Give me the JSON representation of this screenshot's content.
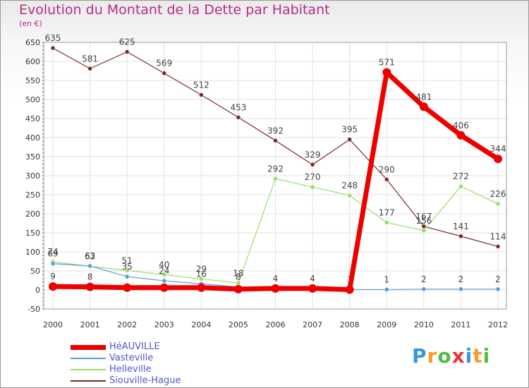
{
  "chart_data": {
    "type": "line",
    "title": "Evolution du Montant de la Dette par Habitant",
    "unit_label": "(en €)",
    "xlabel": "",
    "ylabel": "",
    "categories": [
      "2000",
      "2001",
      "2002",
      "2003",
      "2004",
      "2005",
      "2006",
      "2007",
      "2008",
      "2009",
      "2010",
      "2011",
      "2012"
    ],
    "ylim": [
      -50,
      650
    ],
    "yticks": [
      -50,
      0,
      50,
      100,
      150,
      200,
      250,
      300,
      350,
      400,
      450,
      500,
      550,
      600,
      650
    ],
    "grid": true,
    "series": [
      {
        "name": "Siouville-Hague",
        "color": "#7a2a2a",
        "width": 1.2,
        "values": [
          635,
          581,
          625,
          569,
          512,
          453,
          392,
          329,
          395,
          290,
          167,
          141,
          114
        ],
        "labels": [
          "635",
          "581",
          "625",
          "569",
          "512",
          "453",
          "392",
          "329",
          "395",
          "290",
          "167",
          "141",
          "114"
        ]
      },
      {
        "name": "Helleville",
        "color": "#99dd66",
        "width": 1.2,
        "values": [
          74,
          62,
          51,
          40,
          29,
          18,
          292,
          270,
          248,
          177,
          156,
          272,
          226
        ],
        "labels": [
          "74",
          "62",
          "51",
          "40",
          "29",
          "18",
          "292",
          "270",
          "248",
          "177",
          "156",
          "272",
          "226"
        ]
      },
      {
        "name": "Vasteville",
        "color": "#5b9bd5",
        "width": 1.2,
        "values": [
          69,
          63,
          35,
          24,
          16,
          8,
          4,
          4,
          1,
          1,
          2,
          2,
          2
        ],
        "labels": [
          "69",
          "63",
          "35",
          "24",
          "16",
          "8",
          "4",
          "4",
          "1",
          "1",
          "2",
          "2",
          "2"
        ]
      },
      {
        "name": "HéAUVILLE",
        "color": "#ee0000",
        "width": 7,
        "values": [
          9,
          8,
          6,
          6,
          6,
          2,
          4,
          4,
          1,
          571,
          481,
          406,
          344
        ],
        "labels": [
          "9",
          "8",
          "",
          "",
          "",
          "",
          "",
          "",
          "",
          "571",
          "481",
          "406",
          "344"
        ]
      }
    ]
  },
  "legend": [
    {
      "name": "HéAUVILLE",
      "color": "#ee0000"
    },
    {
      "name": "Vasteville",
      "color": "#5b9bd5"
    },
    {
      "name": "Helleville",
      "color": "#99dd66"
    },
    {
      "name": "Siouville-Hague",
      "color": "#7a2a2a"
    }
  ],
  "logo": {
    "text": "Proxiti",
    "letters": [
      {
        "ch": "P",
        "color": "#3399dd"
      },
      {
        "ch": "r",
        "color": "#ff9922"
      },
      {
        "ch": "o",
        "color": "#55bb44"
      },
      {
        "ch": "x",
        "color": "#ee3333"
      },
      {
        "ch": "i",
        "color": "#3399dd"
      },
      {
        "ch": "t",
        "color": "#ff9922"
      },
      {
        "ch": "i",
        "color": "#55bb44"
      }
    ]
  }
}
